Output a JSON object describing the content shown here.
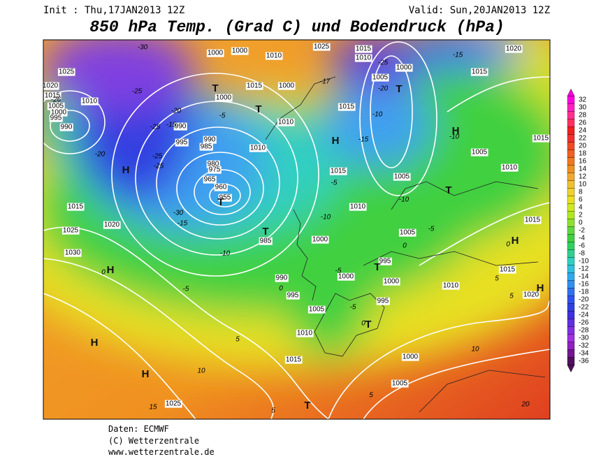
{
  "header": {
    "init": "Init : Thu,17JAN2013 12Z",
    "valid": "Valid: Sun,20JAN2013 12Z",
    "title": "850 hPa Temp. (Grad C) und Bodendruck (hPa)"
  },
  "footer": {
    "source": "Daten: ECMWF",
    "copyright": "(C) Wetterzentrale",
    "url": "www.wetterzentrale.de"
  },
  "scale": {
    "labels": [
      32,
      30,
      28,
      26,
      24,
      22,
      20,
      18,
      16,
      14,
      12,
      10,
      8,
      6,
      4,
      2,
      0,
      -2,
      -4,
      -6,
      -8,
      -10,
      -12,
      -14,
      -16,
      -18,
      -20,
      -22,
      -24,
      -26,
      -28,
      -30,
      -32,
      -34,
      -36
    ],
    "colors": [
      "#ff00e0",
      "#ff20c0",
      "#ff3090",
      "#ff3060",
      "#f02020",
      "#f03030",
      "#f04a20",
      "#f06020",
      "#f07820",
      "#f09020",
      "#f0a830",
      "#f0c030",
      "#f0d030",
      "#e8e020",
      "#d0e820",
      "#b0e820",
      "#90e030",
      "#60d840",
      "#40d040",
      "#30d060",
      "#30d090",
      "#30d0c0",
      "#30c0e0",
      "#30a8f0",
      "#3090f0",
      "#3070f0",
      "#3050f0",
      "#3040e0",
      "#4030e0",
      "#6030e0",
      "#8030e0",
      "#a030e0",
      "#9020c0",
      "#701890",
      "#501060"
    ]
  },
  "map": {
    "systems": [
      "H",
      "H",
      "H",
      "H",
      "H",
      "H",
      "H",
      "H",
      "T",
      "T",
      "T",
      "T",
      "T",
      "T",
      "T",
      "T",
      "T"
    ],
    "isobars": [
      "1025",
      "1020",
      "1015",
      "1010",
      "1005",
      "1000",
      "995",
      "990",
      "1015",
      "1025",
      "1020",
      "1030",
      "1010",
      "990",
      "985",
      "980",
      "975",
      "965",
      "960",
      "955",
      "985",
      "990",
      "995",
      "1000",
      "1000",
      "1005",
      "1010",
      "1015",
      "1025",
      "1015",
      "1010",
      "1005",
      "995",
      "1000",
      "995",
      "1010",
      "1015",
      "1020",
      "1015",
      "1010",
      "1005",
      "1015",
      "1020",
      "1015",
      "1025",
      "1015",
      "1010",
      "1005",
      "1000",
      "1015",
      "1010",
      "1000",
      "1015",
      "1000",
      "1010",
      "1000",
      "1000",
      "990",
      "995",
      "1005",
      "1000",
      "1005"
    ],
    "temperatures": [
      "-30",
      "-25",
      "-26",
      "-25",
      "-20",
      "-25",
      "-25",
      "-15",
      "-20",
      "-30",
      "-15",
      "-10",
      "-5",
      "-5",
      "-17",
      "-15",
      "-10",
      "-20",
      "-25",
      "-15",
      "-10",
      "-5",
      "-10",
      "-10",
      "-5",
      "0",
      "0",
      "-5",
      "0",
      "-5",
      "0",
      "5",
      "10",
      "10",
      "5",
      "15",
      "5",
      "20",
      "5",
      "5",
      "0"
    ]
  }
}
